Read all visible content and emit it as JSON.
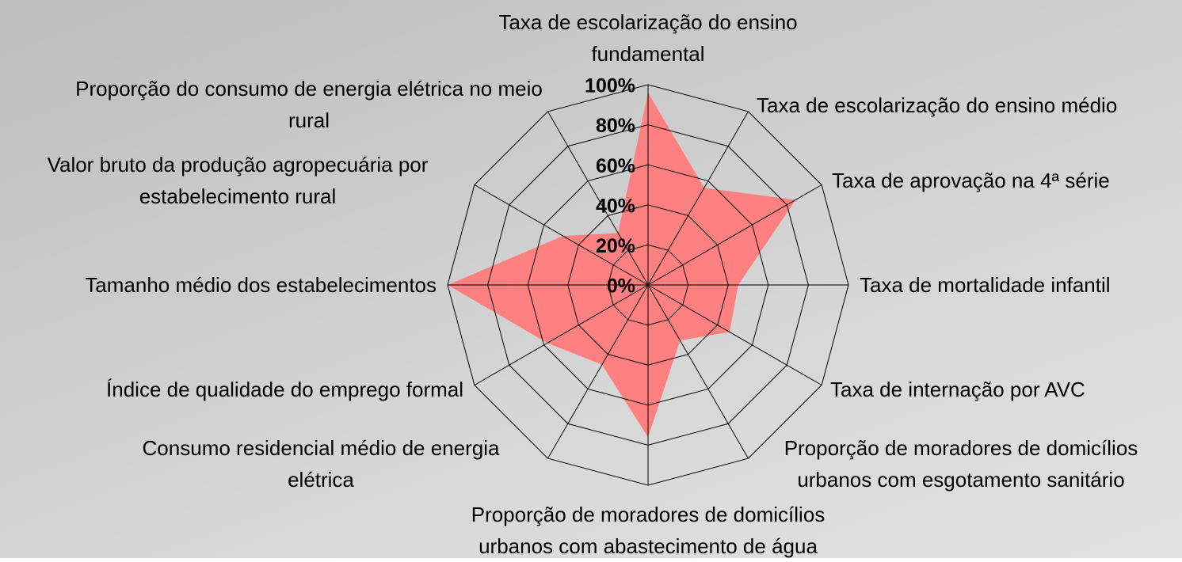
{
  "chart_data": {
    "type": "radar",
    "categories": [
      "Taxa de escolarização do ensino fundamental",
      "Taxa de escolarização do ensino médio",
      "Taxa de aprovação na 4ª série",
      "Taxa de mortalidade infantil",
      "Taxa de internação por AVC",
      "Proporção de moradores de domicílios urbanos com esgotamento sanitário",
      "Proporção de moradores de domicílios urbanos com abastecimento de água",
      "Consumo residencial médio de energia elétrica",
      "Índice de qualidade do emprego formal",
      "Tamanho médio dos estabelecimentos",
      "Valor bruto da produção agropecuária por estabelecimento rural",
      "Proporção do consumo de energia elétrica no meio rural"
    ],
    "values": [
      96,
      56,
      85,
      45,
      47,
      32,
      76,
      46,
      58,
      100,
      49,
      30
    ],
    "color": "#ff8080",
    "ylim": [
      0,
      100
    ],
    "yticks": [
      {
        "value": 0,
        "label": "0%"
      },
      {
        "value": 20,
        "label": "20%"
      },
      {
        "value": 40,
        "label": "40%"
      },
      {
        "value": 60,
        "label": "60%"
      },
      {
        "value": 80,
        "label": "80%"
      },
      {
        "value": 100,
        "label": "100%"
      }
    ],
    "grid": true
  }
}
